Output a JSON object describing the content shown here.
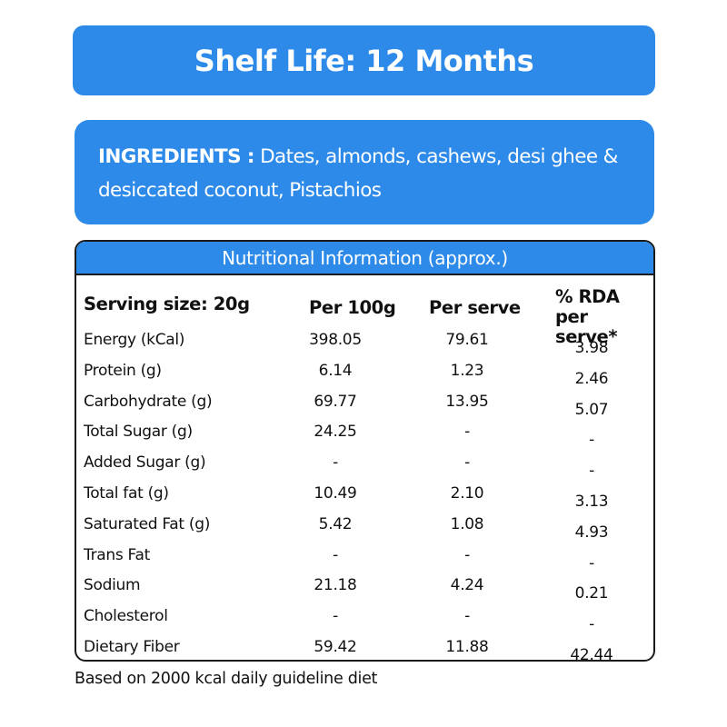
{
  "shelf_life": "Shelf Life: 12 Months",
  "ingredients": {
    "label": "INGREDIENTS :",
    "text": " Dates, almonds, cashews, desi ghee & desiccated coconut, Pistachios"
  },
  "nutrition": {
    "title": "Nutritional Information (approx.)",
    "columns": {
      "serving": "Serving size: 20g",
      "per100": "Per 100g",
      "perserve": "Per serve",
      "rda_line1": "% RDA",
      "rda_line2": "per serve*"
    },
    "rows": [
      {
        "name": "Energy (kCal)",
        "per100": "398.05",
        "perserve": "79.61",
        "rda": "3.98"
      },
      {
        "name": "Protein (g)",
        "per100": "6.14",
        "perserve": "1.23",
        "rda": "2.46"
      },
      {
        "name": "Carbohydrate (g)",
        "per100": "69.77",
        "perserve": "13.95",
        "rda": "5.07"
      },
      {
        "name": "Total Sugar (g)",
        "per100": "24.25",
        "perserve": "-",
        "rda": "-"
      },
      {
        "name": "Added Sugar (g)",
        "per100": "-",
        "perserve": "-",
        "rda": "-"
      },
      {
        "name": "Total fat (g)",
        "per100": "10.49",
        "perserve": "2.10",
        "rda": "3.13"
      },
      {
        "name": "Saturated Fat (g)",
        "per100": "5.42",
        "perserve": "1.08",
        "rda": "4.93"
      },
      {
        "name": "Trans Fat",
        "per100": "-",
        "perserve": "-",
        "rda": "-"
      },
      {
        "name": "Sodium",
        "per100": "21.18",
        "perserve": "4.24",
        "rda": "0.21"
      },
      {
        "name": "Cholesterol",
        "per100": "-",
        "perserve": "-",
        "rda": "-"
      },
      {
        "name": "Dietary Fiber",
        "per100": "59.42",
        "perserve": "11.88",
        "rda": "42.44"
      }
    ]
  },
  "footnote": "Based on 2000 kcal daily guideline diet",
  "colors": {
    "accent": "#2d8ae8",
    "border": "#1b1b1b"
  }
}
